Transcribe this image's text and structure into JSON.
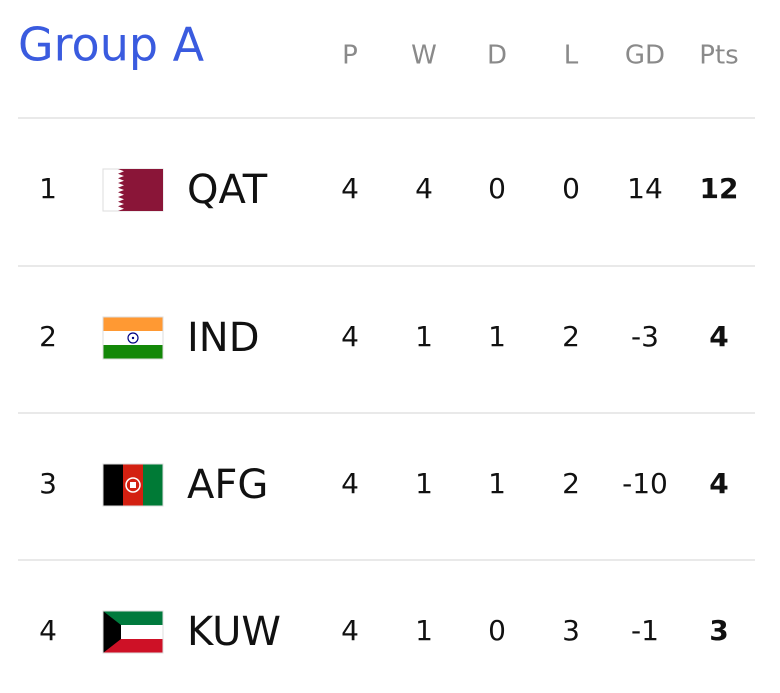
{
  "header": {
    "title": "Group A",
    "columns": [
      "P",
      "W",
      "D",
      "L",
      "GD",
      "Pts"
    ]
  },
  "table": {
    "rows": [
      [
        1,
        "QAT",
        4,
        4,
        0,
        0,
        14,
        12
      ],
      [
        2,
        "IND",
        4,
        1,
        1,
        2,
        -3,
        4
      ],
      [
        3,
        "AFG",
        4,
        1,
        1,
        2,
        -10,
        4
      ],
      [
        4,
        "KUW",
        4,
        1,
        0,
        3,
        -1,
        3
      ]
    ]
  }
}
